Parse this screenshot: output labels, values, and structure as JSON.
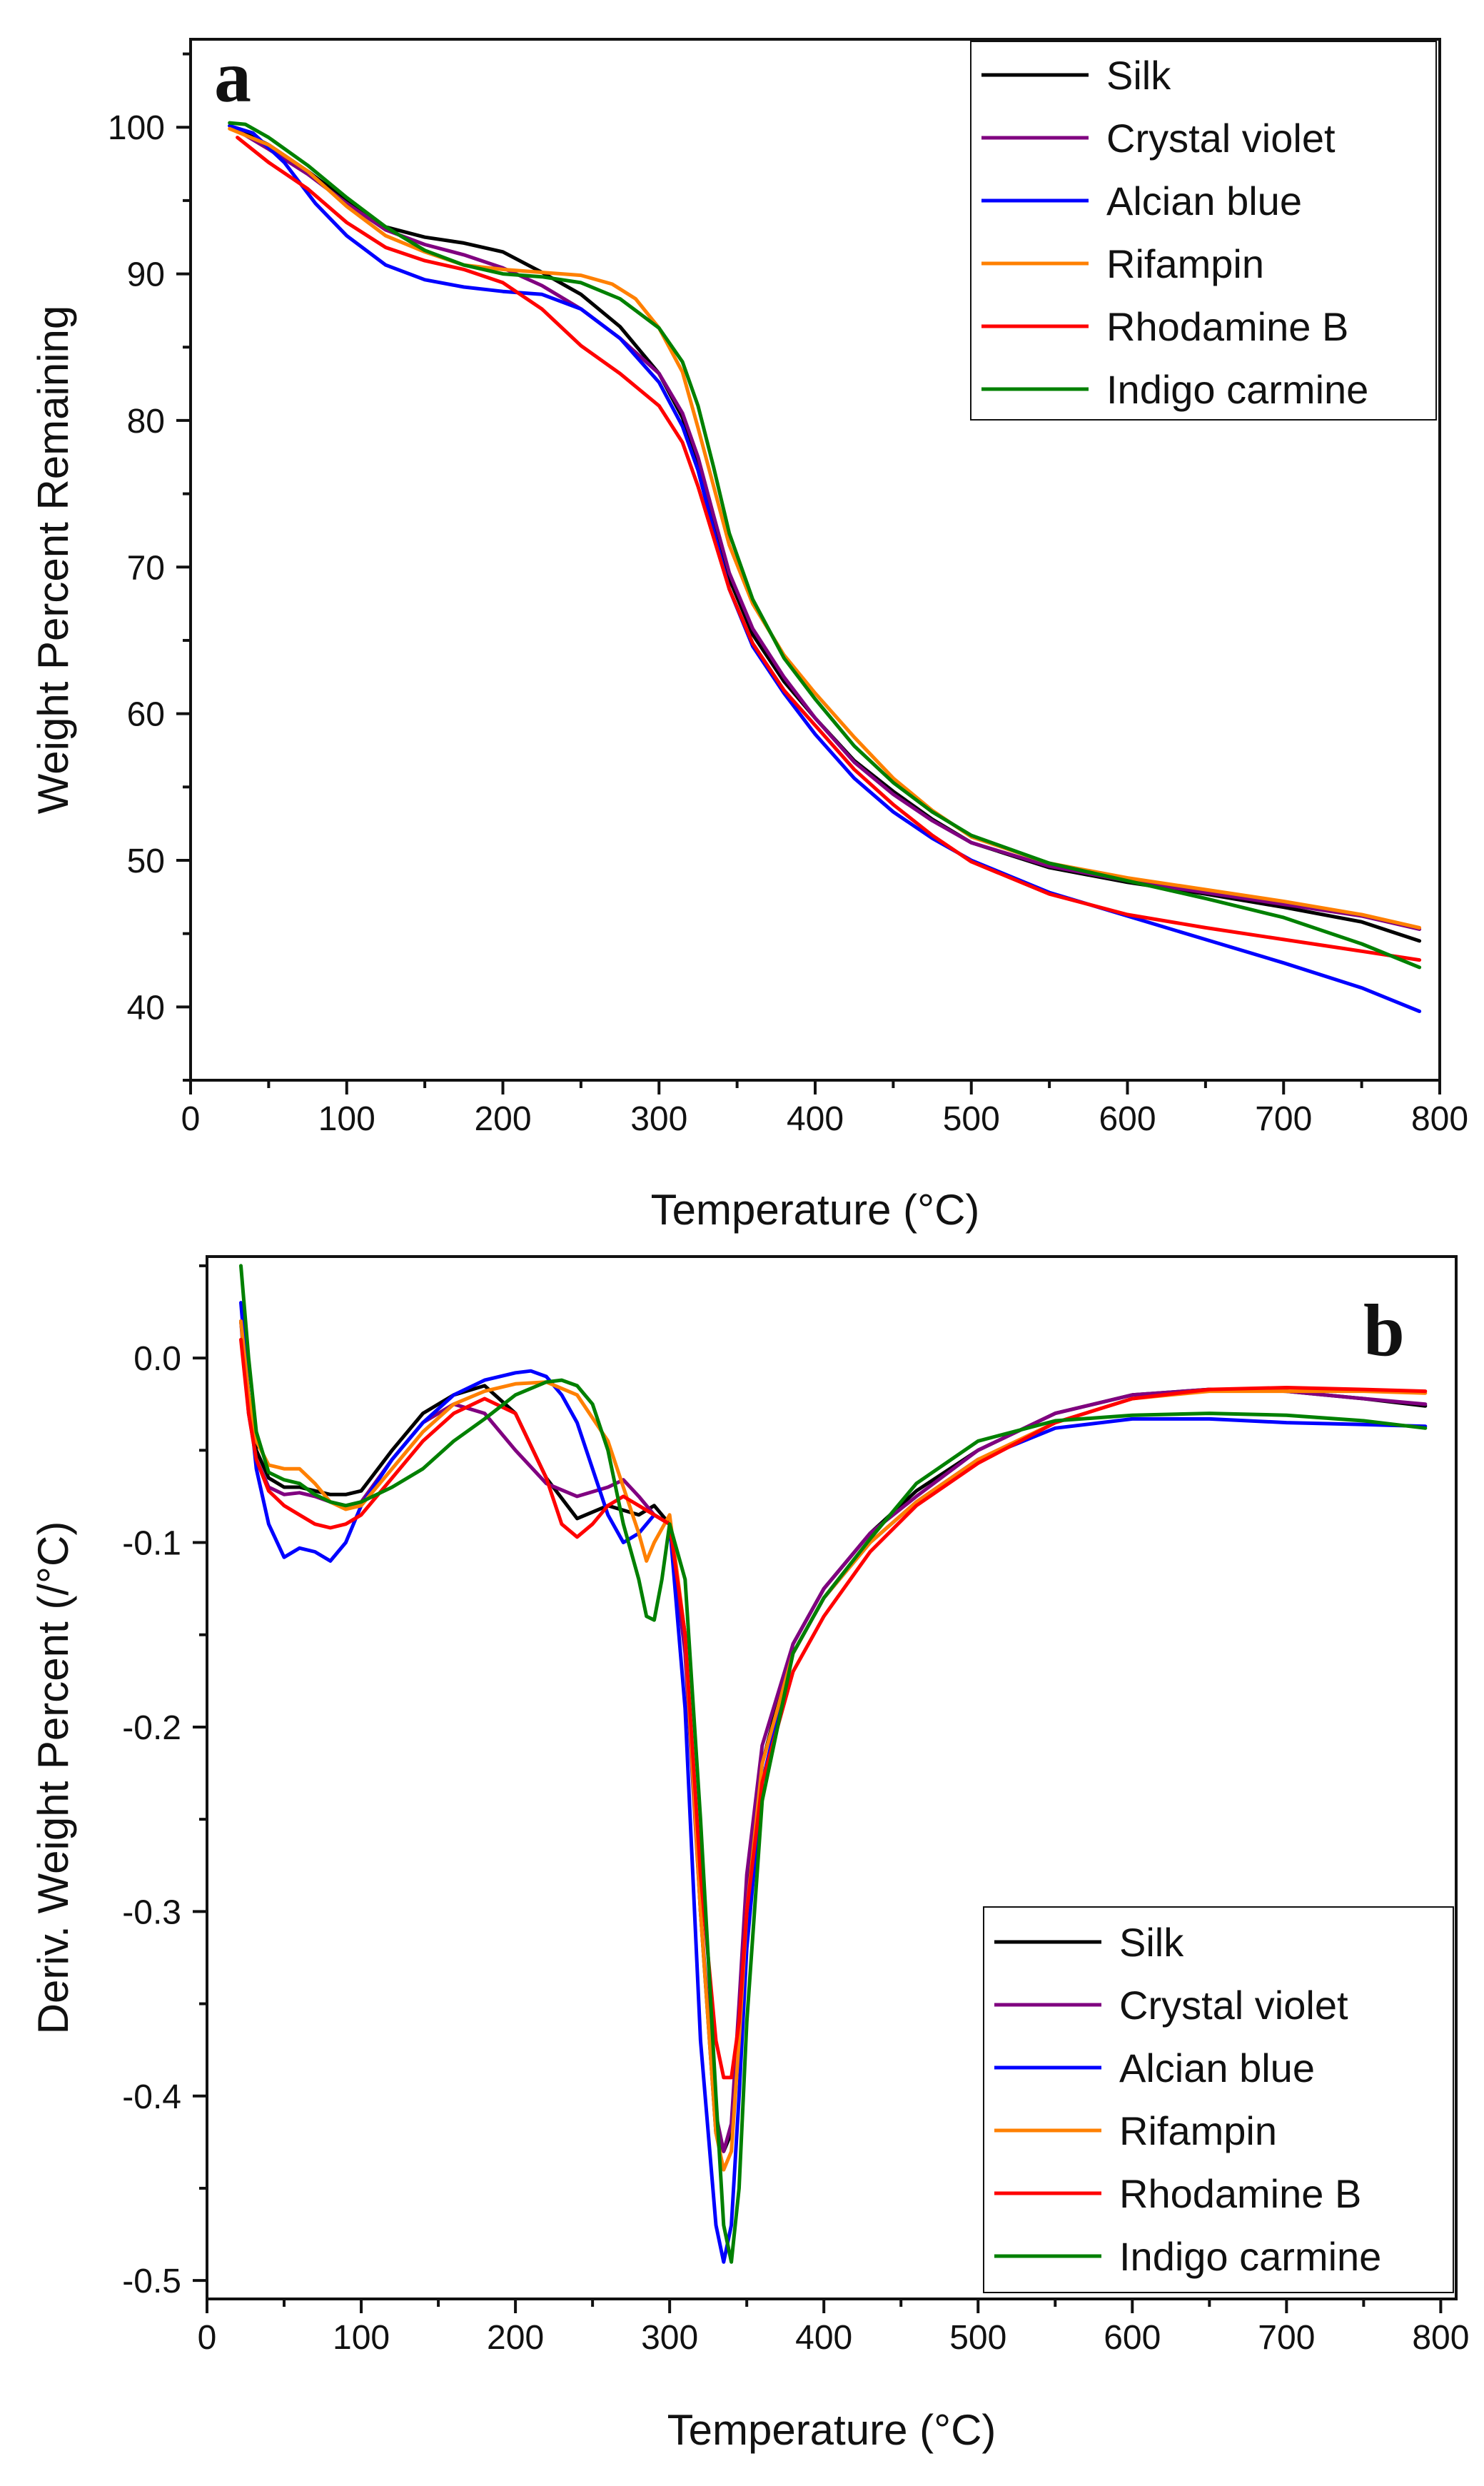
{
  "chart_data": [
    {
      "type": "line",
      "panel_label": "a",
      "xlabel": "Temperature (°C)",
      "ylabel": "Weight Percent Remaining",
      "xlim": [
        0,
        800
      ],
      "ylim": [
        35,
        106
      ],
      "xticks": [
        0,
        100,
        200,
        300,
        400,
        500,
        600,
        700,
        800
      ],
      "yticks": [
        40,
        50,
        60,
        70,
        80,
        90,
        100
      ],
      "legend_position": "top-right",
      "grid": false,
      "series": [
        {
          "name": "Silk",
          "color": "#000000",
          "x": [
            25,
            50,
            75,
            100,
            125,
            150,
            175,
            200,
            225,
            250,
            275,
            300,
            315,
            325,
            335,
            345,
            360,
            380,
            400,
            425,
            450,
            475,
            500,
            550,
            600,
            650,
            700,
            750,
            787
          ],
          "y": [
            100.1,
            98.8,
            97,
            95,
            93.2,
            92.5,
            92.1,
            91.5,
            90.1,
            88.6,
            86.4,
            83.2,
            80.2,
            77,
            73,
            69.2,
            65.4,
            62.2,
            59.7,
            56.8,
            54.7,
            52.8,
            51.2,
            49.5,
            48.5,
            47.7,
            46.8,
            45.8,
            44.5
          ]
        },
        {
          "name": "Crystal violet",
          "color": "#800080",
          "x": [
            25,
            50,
            75,
            100,
            125,
            150,
            175,
            200,
            225,
            250,
            275,
            300,
            315,
            325,
            335,
            345,
            360,
            380,
            400,
            425,
            450,
            475,
            500,
            550,
            600,
            650,
            700,
            750,
            787
          ],
          "y": [
            100.1,
            98.5,
            96.8,
            94.8,
            93,
            92,
            91.3,
            90.4,
            89.2,
            87.6,
            85.6,
            83.2,
            80.5,
            77.5,
            73.5,
            69.6,
            65.8,
            62.5,
            59.7,
            56.7,
            54.5,
            52.7,
            51.2,
            49.6,
            48.6,
            47.8,
            47,
            46.2,
            45.3
          ]
        },
        {
          "name": "Alcian blue",
          "color": "#0000FF",
          "x": [
            25,
            40,
            60,
            80,
            100,
            125,
            150,
            175,
            200,
            225,
            250,
            275,
            300,
            315,
            325,
            335,
            345,
            360,
            380,
            400,
            425,
            450,
            475,
            500,
            550,
            600,
            650,
            700,
            750,
            787
          ],
          "y": [
            100.1,
            99.6,
            97.6,
            94.8,
            92.6,
            90.6,
            89.6,
            89.1,
            88.8,
            88.6,
            87.6,
            85.6,
            82.6,
            79.6,
            76.6,
            72.5,
            68.5,
            64.6,
            61.4,
            58.6,
            55.6,
            53.3,
            51.5,
            50,
            47.8,
            46.2,
            44.6,
            43,
            41.3,
            39.7
          ]
        },
        {
          "name": "Rifampin",
          "color": "#FF8000",
          "x": [
            25,
            50,
            75,
            100,
            125,
            150,
            175,
            200,
            225,
            250,
            270,
            285,
            300,
            315,
            325,
            335,
            345,
            360,
            380,
            400,
            425,
            450,
            475,
            500,
            550,
            600,
            650,
            700,
            750,
            787
          ],
          "y": [
            99.9,
            98.8,
            97,
            94.6,
            92.6,
            91.5,
            90.6,
            90.3,
            90.1,
            89.9,
            89.3,
            88.3,
            86.3,
            83.3,
            79.5,
            75.5,
            71.5,
            67.5,
            64,
            61.4,
            58.4,
            55.6,
            53.4,
            51.6,
            49.8,
            48.8,
            48,
            47.2,
            46.3,
            45.4
          ]
        },
        {
          "name": "Rhodamine B",
          "color": "#FF0000",
          "x": [
            30,
            50,
            75,
            100,
            125,
            150,
            175,
            200,
            225,
            250,
            275,
            300,
            315,
            325,
            335,
            345,
            360,
            380,
            400,
            425,
            450,
            475,
            500,
            550,
            600,
            650,
            700,
            750,
            787
          ],
          "y": [
            99.3,
            97.6,
            95.8,
            93.5,
            91.8,
            90.9,
            90.3,
            89.4,
            87.6,
            85.1,
            83.2,
            81,
            78.5,
            75.5,
            72,
            68.5,
            64.8,
            61.6,
            59.2,
            56.2,
            53.8,
            51.7,
            49.9,
            47.7,
            46.3,
            45.4,
            44.6,
            43.8,
            43.2
          ]
        },
        {
          "name": "Indigo carmine",
          "color": "#008000",
          "x": [
            25,
            35,
            50,
            75,
            100,
            125,
            150,
            175,
            200,
            225,
            250,
            275,
            300,
            315,
            325,
            335,
            345,
            360,
            380,
            400,
            425,
            450,
            475,
            500,
            550,
            600,
            650,
            700,
            750,
            787
          ],
          "y": [
            100.3,
            100.2,
            99.3,
            97.4,
            95.2,
            93.2,
            91.6,
            90.6,
            90,
            89.8,
            89.4,
            88.3,
            86.3,
            84,
            81,
            76.8,
            72.3,
            67.8,
            63.8,
            61,
            57.8,
            55.3,
            53.3,
            51.7,
            49.8,
            48.6,
            47.4,
            46.1,
            44.3,
            42.7
          ]
        }
      ]
    },
    {
      "type": "line",
      "panel_label": "b",
      "xlabel": "Temperature (°C)",
      "ylabel": "Deriv. Weight Percent (/°C)",
      "xlim": [
        0,
        810
      ],
      "ylim": [
        -0.51,
        0.055
      ],
      "xticks": [
        0,
        100,
        200,
        300,
        400,
        500,
        600,
        700,
        800
      ],
      "yticks": [
        0.0,
        -0.1,
        -0.2,
        -0.3,
        -0.4,
        -0.5
      ],
      "ytick_labels": [
        "0.0",
        "-0.1",
        "-0.2",
        "-0.3",
        "-0.4",
        "-0.5"
      ],
      "legend_position": "bottom-right",
      "grid": false,
      "series": [
        {
          "name": "Silk",
          "color": "#000000",
          "x": [
            22,
            27,
            32,
            40,
            50,
            60,
            70,
            80,
            90,
            100,
            120,
            140,
            160,
            180,
            200,
            220,
            240,
            260,
            280,
            290,
            300,
            310,
            320,
            330,
            335,
            340,
            345,
            350,
            360,
            380,
            400,
            430,
            460,
            500,
            550,
            600,
            650,
            700,
            750,
            790
          ],
          "y": [
            0.02,
            -0.02,
            -0.05,
            -0.065,
            -0.07,
            -0.07,
            -0.072,
            -0.074,
            -0.074,
            -0.072,
            -0.05,
            -0.03,
            -0.02,
            -0.015,
            -0.03,
            -0.065,
            -0.087,
            -0.08,
            -0.085,
            -0.08,
            -0.09,
            -0.15,
            -0.3,
            -0.42,
            -0.43,
            -0.42,
            -0.36,
            -0.29,
            -0.22,
            -0.155,
            -0.125,
            -0.095,
            -0.072,
            -0.05,
            -0.03,
            -0.02,
            -0.017,
            -0.018,
            -0.022,
            -0.026
          ]
        },
        {
          "name": "Crystal violet",
          "color": "#800080",
          "x": [
            22,
            27,
            32,
            40,
            50,
            60,
            70,
            80,
            90,
            100,
            120,
            140,
            160,
            180,
            200,
            220,
            240,
            260,
            270,
            280,
            290,
            300,
            310,
            320,
            330,
            335,
            340,
            345,
            350,
            360,
            380,
            400,
            430,
            460,
            500,
            550,
            600,
            650,
            700,
            750,
            790
          ],
          "y": [
            0.02,
            -0.03,
            -0.055,
            -0.07,
            -0.074,
            -0.073,
            -0.075,
            -0.078,
            -0.08,
            -0.078,
            -0.055,
            -0.035,
            -0.025,
            -0.03,
            -0.05,
            -0.068,
            -0.075,
            -0.07,
            -0.066,
            -0.075,
            -0.085,
            -0.09,
            -0.16,
            -0.3,
            -0.41,
            -0.43,
            -0.415,
            -0.35,
            -0.28,
            -0.21,
            -0.155,
            -0.125,
            -0.095,
            -0.075,
            -0.05,
            -0.03,
            -0.02,
            -0.017,
            -0.018,
            -0.022,
            -0.025
          ]
        },
        {
          "name": "Alcian blue",
          "color": "#0000FF",
          "x": [
            22,
            27,
            32,
            40,
            50,
            60,
            70,
            80,
            90,
            100,
            120,
            140,
            160,
            180,
            200,
            210,
            220,
            230,
            240,
            250,
            260,
            270,
            280,
            290,
            300,
            310,
            320,
            330,
            335,
            340,
            345,
            350,
            360,
            380,
            400,
            430,
            460,
            500,
            550,
            600,
            650,
            700,
            750,
            790
          ],
          "y": [
            0.03,
            -0.02,
            -0.06,
            -0.09,
            -0.108,
            -0.103,
            -0.105,
            -0.11,
            -0.1,
            -0.08,
            -0.055,
            -0.035,
            -0.02,
            -0.012,
            -0.008,
            -0.007,
            -0.01,
            -0.02,
            -0.035,
            -0.06,
            -0.085,
            -0.1,
            -0.095,
            -0.085,
            -0.09,
            -0.19,
            -0.37,
            -0.47,
            -0.49,
            -0.47,
            -0.4,
            -0.32,
            -0.23,
            -0.16,
            -0.13,
            -0.1,
            -0.078,
            -0.055,
            -0.038,
            -0.033,
            -0.033,
            -0.035,
            -0.036,
            -0.037
          ]
        },
        {
          "name": "Rifampin",
          "color": "#FF8000",
          "x": [
            22,
            27,
            32,
            40,
            50,
            60,
            70,
            80,
            90,
            100,
            120,
            140,
            160,
            180,
            200,
            220,
            240,
            260,
            270,
            280,
            285,
            290,
            300,
            310,
            320,
            330,
            335,
            340,
            345,
            350,
            360,
            380,
            400,
            430,
            460,
            500,
            550,
            600,
            650,
            700,
            750,
            790
          ],
          "y": [
            0.02,
            -0.02,
            -0.045,
            -0.058,
            -0.06,
            -0.06,
            -0.068,
            -0.078,
            -0.082,
            -0.08,
            -0.06,
            -0.04,
            -0.025,
            -0.018,
            -0.014,
            -0.013,
            -0.02,
            -0.045,
            -0.07,
            -0.095,
            -0.11,
            -0.1,
            -0.085,
            -0.15,
            -0.3,
            -0.42,
            -0.44,
            -0.43,
            -0.37,
            -0.3,
            -0.22,
            -0.16,
            -0.13,
            -0.1,
            -0.078,
            -0.055,
            -0.035,
            -0.022,
            -0.018,
            -0.018,
            -0.018,
            -0.019
          ]
        },
        {
          "name": "Rhodamine B",
          "color": "#FF0000",
          "x": [
            22,
            27,
            32,
            40,
            50,
            60,
            70,
            80,
            90,
            100,
            120,
            140,
            160,
            180,
            200,
            220,
            230,
            240,
            250,
            260,
            270,
            280,
            290,
            300,
            310,
            320,
            330,
            335,
            340,
            345,
            350,
            360,
            380,
            400,
            430,
            460,
            500,
            550,
            600,
            650,
            700,
            750,
            790
          ],
          "y": [
            0.01,
            -0.03,
            -0.055,
            -0.072,
            -0.08,
            -0.085,
            -0.09,
            -0.092,
            -0.09,
            -0.085,
            -0.065,
            -0.045,
            -0.03,
            -0.022,
            -0.03,
            -0.065,
            -0.09,
            -0.097,
            -0.09,
            -0.08,
            -0.075,
            -0.08,
            -0.085,
            -0.09,
            -0.15,
            -0.28,
            -0.37,
            -0.39,
            -0.39,
            -0.36,
            -0.3,
            -0.23,
            -0.17,
            -0.14,
            -0.105,
            -0.08,
            -0.057,
            -0.035,
            -0.022,
            -0.017,
            -0.016,
            -0.017,
            -0.018
          ]
        },
        {
          "name": "Indigo carmine",
          "color": "#008000",
          "x": [
            22,
            27,
            32,
            40,
            50,
            60,
            70,
            80,
            90,
            100,
            120,
            140,
            160,
            180,
            200,
            220,
            230,
            240,
            250,
            260,
            270,
            280,
            285,
            290,
            295,
            300,
            310,
            320,
            330,
            335,
            340,
            345,
            350,
            360,
            380,
            400,
            430,
            460,
            500,
            550,
            600,
            650,
            700,
            750,
            790
          ],
          "y": [
            0.05,
            0,
            -0.04,
            -0.062,
            -0.066,
            -0.068,
            -0.074,
            -0.078,
            -0.08,
            -0.078,
            -0.07,
            -0.06,
            -0.045,
            -0.033,
            -0.02,
            -0.013,
            -0.012,
            -0.015,
            -0.025,
            -0.05,
            -0.09,
            -0.12,
            -0.14,
            -0.142,
            -0.12,
            -0.09,
            -0.12,
            -0.25,
            -0.4,
            -0.47,
            -0.49,
            -0.45,
            -0.36,
            -0.24,
            -0.16,
            -0.13,
            -0.098,
            -0.068,
            -0.045,
            -0.034,
            -0.031,
            -0.03,
            -0.031,
            -0.034,
            -0.038
          ]
        }
      ]
    }
  ]
}
